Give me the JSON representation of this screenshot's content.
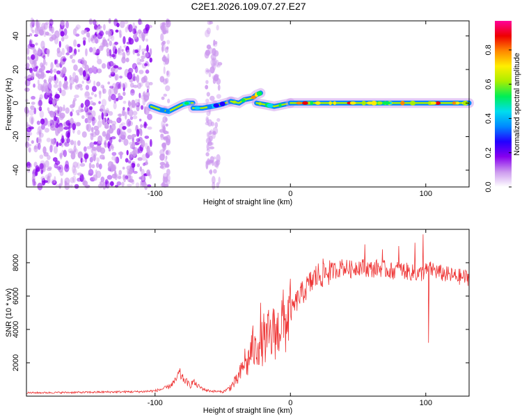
{
  "figure_title": "C2E1.2026.109.07.27.E27",
  "chart_data": [
    {
      "type": "heatmap",
      "title": "C2E1.2026.109.07.27.E27",
      "xlabel": "Height of straight line (km)",
      "ylabel": "Frequency (Hz)",
      "xlim": [
        -195,
        132
      ],
      "ylim": [
        -50,
        49
      ],
      "x_ticks": [
        -100,
        0,
        100
      ],
      "x_tick_labels": [
        "-100",
        "0",
        "100"
      ],
      "y_ticks": [
        40,
        20,
        0,
        -20,
        -40
      ],
      "y_tick_labels": [
        "40",
        "20",
        "0",
        "-20",
        "-40"
      ],
      "colorbar": {
        "label": "Normalized spectral amplitude",
        "range": [
          0,
          0.97
        ],
        "ticks": [
          0.0,
          0.2,
          0.4,
          0.6,
          0.8
        ],
        "tick_labels": [
          "0.0",
          "0.2",
          "0.4",
          "0.6",
          "0.8"
        ],
        "colormap": [
          "#ffffff",
          "#cc99ee",
          "#8800ee",
          "#2200ff",
          "#0088ff",
          "#00ddee",
          "#00ee55",
          "#aaee00",
          "#ffee00",
          "#ff8800",
          "#ee0000",
          "#ff0099"
        ]
      },
      "features": [
        {
          "name": "broadband noise region",
          "x_range": [
            -195,
            -103
          ],
          "y_range": [
            -50,
            49
          ],
          "amplitude": 0.2
        },
        {
          "name": "faint vertical band",
          "x_range": [
            -95,
            -90
          ],
          "y_range": [
            -50,
            49
          ],
          "amplitude": 0.05
        },
        {
          "name": "faint vertical band",
          "x_range": [
            -62,
            -52
          ],
          "y_range": [
            -50,
            49
          ],
          "amplitude": 0.08
        },
        {
          "name": "narrowband line segment",
          "x": [
            -103,
            -96,
            -90,
            -85,
            -80,
            -76,
            -72
          ],
          "y": [
            -2,
            -4,
            -5,
            -3,
            -1,
            0,
            0
          ],
          "amplitude": 0.45
        },
        {
          "name": "narrowband line segment",
          "x": [
            -72,
            -65,
            -58,
            -52,
            -48,
            -44
          ],
          "y": [
            -3,
            -3,
            -2,
            -1,
            0,
            1
          ],
          "amplitude": 0.4
        },
        {
          "name": "narrowband line segment",
          "x": [
            -44,
            -38,
            -34,
            -28,
            -25,
            -22
          ],
          "y": [
            1,
            0,
            2,
            3,
            5,
            6
          ],
          "amplitude": 0.7
        },
        {
          "name": "narrowband line segment",
          "x": [
            -25,
            -18,
            -12,
            -6,
            0
          ],
          "y": [
            0,
            -1,
            -2,
            -1,
            0
          ],
          "amplitude": 0.65
        },
        {
          "name": "steady narrowband line",
          "x": [
            0,
            132
          ],
          "y": [
            0,
            0
          ],
          "amplitude": 0.7
        }
      ]
    },
    {
      "type": "line",
      "xlabel": "Height of straight line (km)",
      "ylabel": "SNR (10 * v/v)",
      "xlim": [
        -195,
        132
      ],
      "ylim": [
        0,
        10000
      ],
      "x_ticks": [
        -100,
        0,
        100
      ],
      "x_tick_labels": [
        "-100",
        "0",
        "100"
      ],
      "y_ticks": [
        2000,
        4000,
        6000,
        8000
      ],
      "y_tick_labels": [
        "2000",
        "4000",
        "6000",
        "8000"
      ],
      "series": [
        {
          "name": "SNR",
          "color": "#ee3333",
          "x": [
            -195,
            -180,
            -165,
            -150,
            -135,
            -120,
            -110,
            -100,
            -95,
            -90,
            -85,
            -82,
            -80,
            -78,
            -76,
            -74,
            -72,
            -70,
            -66,
            -62,
            -58,
            -54,
            -50,
            -45,
            -40,
            -38,
            -36,
            -34,
            -32,
            -30,
            -28,
            -26,
            -24,
            -22,
            -20,
            -18,
            -16,
            -14,
            -12,
            -10,
            -8,
            -6,
            -4,
            -2,
            0,
            2,
            4,
            6,
            8,
            10,
            12,
            14,
            16,
            18,
            20,
            25,
            30,
            35,
            40,
            45,
            50,
            55,
            60,
            65,
            70,
            75,
            80,
            85,
            90,
            95,
            100,
            105,
            110,
            115,
            120,
            125,
            132
          ],
          "y": [
            200,
            210,
            220,
            230,
            250,
            260,
            270,
            320,
            420,
            550,
            900,
            1400,
            1100,
            950,
            800,
            600,
            900,
            700,
            500,
            350,
            300,
            280,
            250,
            500,
            900,
            1200,
            1500,
            2200,
            1800,
            2500,
            3000,
            2600,
            3300,
            2800,
            3500,
            3200,
            3700,
            3400,
            4000,
            3600,
            4300,
            4600,
            4200,
            4800,
            5000,
            5300,
            5600,
            5900,
            6100,
            6300,
            6500,
            6700,
            6900,
            7100,
            7200,
            7400,
            7500,
            7600,
            7700,
            7600,
            7800,
            7700,
            7600,
            7700,
            7600,
            7500,
            7600,
            7500,
            7400,
            7300,
            7500,
            7600,
            7400,
            7300,
            7200,
            7150,
            7100
          ],
          "spikes": [
            {
              "x": -22,
              "y": 5600
            },
            {
              "x": -12,
              "y": 5200
            },
            {
              "x": 38,
              "y": 8200
            },
            {
              "x": 55,
              "y": 9100
            },
            {
              "x": 68,
              "y": 8800
            },
            {
              "x": 80,
              "y": 9000
            },
            {
              "x": 92,
              "y": 9200
            },
            {
              "x": 98,
              "y": 9700
            },
            {
              "x": 102,
              "y": 3200
            }
          ]
        }
      ]
    }
  ]
}
